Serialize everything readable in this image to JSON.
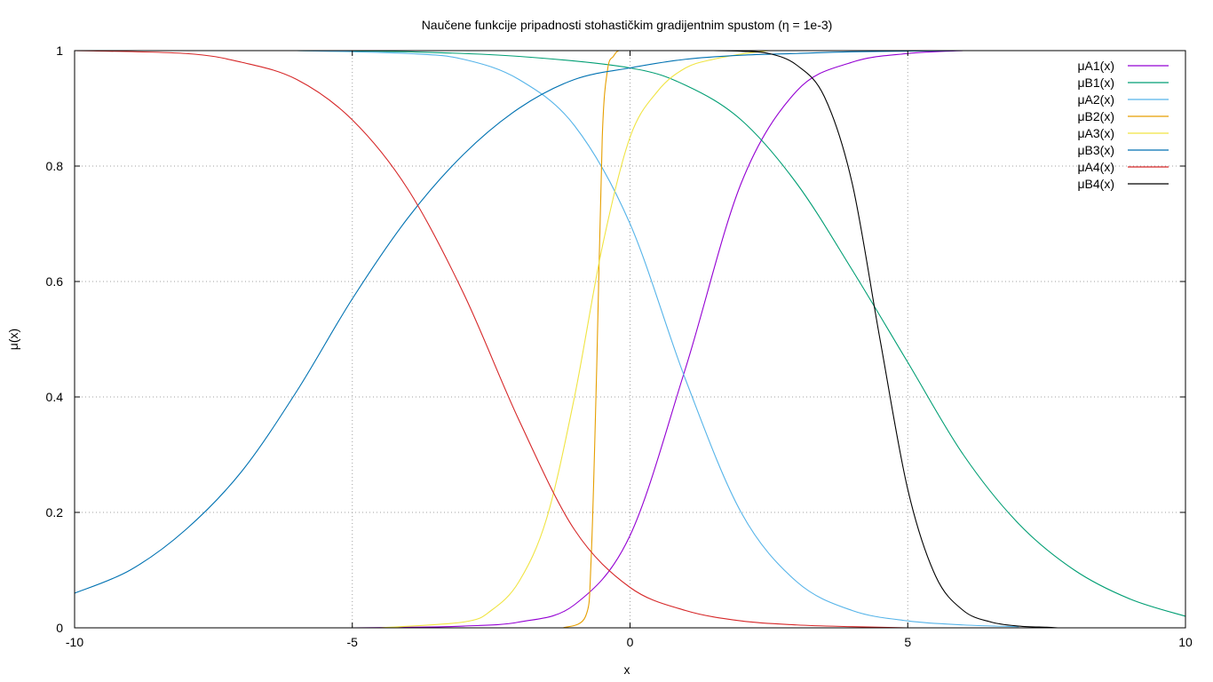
{
  "chart_data": {
    "type": "line",
    "title": "Naučene funkcije pripadnosti stohastičkim gradijentnim spustom (η = 1e-3)",
    "xlabel": "x",
    "ylabel": "μ(x)",
    "xlim": [
      -10,
      10
    ],
    "ylim": [
      0,
      1
    ],
    "xticks": [
      -10,
      -5,
      0,
      5,
      10
    ],
    "xtick_labels": [
      "-10",
      "-5",
      "0",
      "5",
      "10"
    ],
    "yticks": [
      0,
      0.2,
      0.4,
      0.6,
      0.8,
      1
    ],
    "ytick_labels": [
      "0",
      "0.2",
      "0.4",
      "0.6",
      "0.8",
      "1"
    ],
    "grid": true,
    "legend_position": "top-right",
    "series": [
      {
        "name": "μA1(x)",
        "color": "#9400d3",
        "x": [
          -5,
          -4,
          -3,
          -2,
          -1,
          0,
          1,
          2,
          3,
          4,
          5,
          6
        ],
        "y": [
          0.0,
          0.001,
          0.003,
          0.01,
          0.04,
          0.16,
          0.45,
          0.77,
          0.93,
          0.98,
          0.995,
          1.0
        ]
      },
      {
        "name": "μB1(x)",
        "color": "#009e73",
        "x": [
          -6,
          -4,
          -2,
          0,
          1,
          2,
          3,
          4,
          5,
          6,
          7,
          8,
          9,
          10
        ],
        "y": [
          1.0,
          0.998,
          0.99,
          0.97,
          0.94,
          0.88,
          0.77,
          0.62,
          0.46,
          0.3,
          0.18,
          0.1,
          0.05,
          0.02
        ]
      },
      {
        "name": "μA2(x)",
        "color": "#56b4e9",
        "x": [
          -6,
          -4,
          -3,
          -2,
          -1,
          0,
          1,
          2,
          3,
          4,
          5,
          6,
          7
        ],
        "y": [
          1.0,
          0.995,
          0.985,
          0.95,
          0.87,
          0.7,
          0.43,
          0.2,
          0.08,
          0.03,
          0.012,
          0.005,
          0.002
        ]
      },
      {
        "name": "μB2(x)",
        "color": "#e69f00",
        "x": [
          -1.2,
          -0.8,
          -0.7,
          -0.6,
          -0.5,
          -0.4,
          -0.3,
          -0.2,
          0.0
        ],
        "y": [
          0.0,
          0.02,
          0.12,
          0.45,
          0.85,
          0.97,
          0.99,
          1.0,
          1.0
        ]
      },
      {
        "name": "μA3(x)",
        "color": "#f0e442",
        "x": [
          -4.5,
          -3,
          -2.5,
          -2,
          -1.5,
          -1,
          -0.5,
          0,
          0.5,
          1,
          1.5,
          2,
          2.5
        ],
        "y": [
          0.0,
          0.01,
          0.03,
          0.08,
          0.19,
          0.4,
          0.66,
          0.85,
          0.93,
          0.97,
          0.985,
          0.994,
          1.0
        ]
      },
      {
        "name": "μB3(x)",
        "color": "#0072b2",
        "x": [
          -10,
          -9,
          -8,
          -7,
          -6,
          -5,
          -4,
          -3,
          -2,
          -1,
          0,
          1,
          2,
          3,
          4,
          6
        ],
        "y": [
          0.06,
          0.1,
          0.17,
          0.27,
          0.41,
          0.57,
          0.71,
          0.82,
          0.9,
          0.95,
          0.97,
          0.985,
          0.992,
          0.995,
          0.998,
          1.0
        ]
      },
      {
        "name": "μA4(x)",
        "color": "#d62728",
        "x": [
          -10,
          -8,
          -7,
          -6,
          -5,
          -4,
          -3,
          -2,
          -1,
          0,
          1,
          2,
          3,
          4,
          5
        ],
        "y": [
          1.0,
          0.995,
          0.98,
          0.95,
          0.88,
          0.76,
          0.58,
          0.36,
          0.17,
          0.07,
          0.03,
          0.012,
          0.005,
          0.002,
          0.0
        ]
      },
      {
        "name": "μB4(x)",
        "color": "#000000",
        "x": [
          1.5,
          2,
          2.5,
          3,
          3.5,
          4,
          4.5,
          5,
          5.5,
          6,
          6.5,
          7,
          7.5,
          7.7
        ],
        "y": [
          1.0,
          0.999,
          0.995,
          0.975,
          0.92,
          0.77,
          0.5,
          0.24,
          0.09,
          0.03,
          0.01,
          0.003,
          0.001,
          0.0
        ]
      }
    ]
  }
}
